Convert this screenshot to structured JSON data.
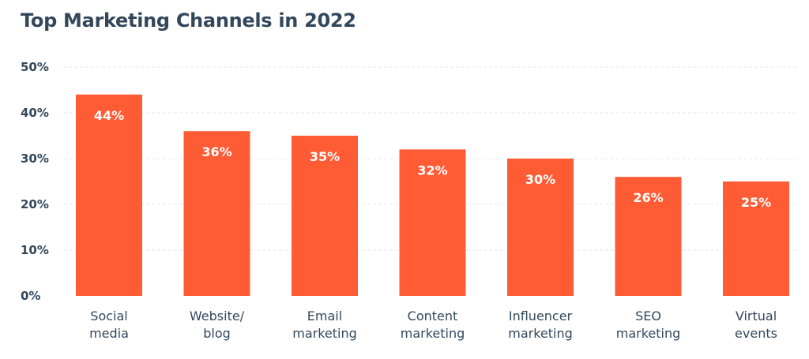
{
  "chart_data": {
    "type": "bar",
    "title": "Top Marketing Channels in 2022",
    "categories": [
      [
        "Social",
        "media"
      ],
      [
        "Website/",
        "blog"
      ],
      [
        "Email",
        "marketing"
      ],
      [
        "Content",
        "marketing"
      ],
      [
        "Influencer",
        "marketing"
      ],
      [
        "SEO",
        "marketing"
      ],
      [
        "Virtual",
        "events"
      ]
    ],
    "values": [
      44,
      36,
      35,
      32,
      30,
      26,
      25
    ],
    "data_labels": [
      "44%",
      "36%",
      "35%",
      "32%",
      "30%",
      "26%",
      "25%"
    ],
    "ylim": [
      0,
      50
    ],
    "yticks": [
      0,
      10,
      20,
      30,
      40,
      50
    ],
    "ytick_labels": [
      "0%",
      "10%",
      "20%",
      "30%",
      "40%",
      "50%"
    ],
    "xlabel": "",
    "ylabel": "",
    "grid": true,
    "bar_color": "#ff5c35"
  }
}
